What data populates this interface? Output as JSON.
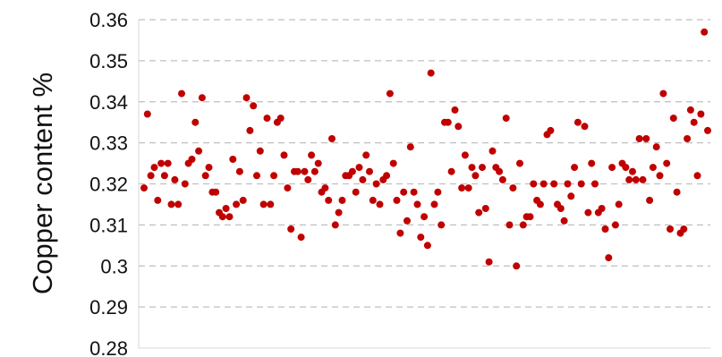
{
  "chart_data": {
    "type": "scatter",
    "title": "",
    "xlabel": "",
    "ylabel": "Copper content %",
    "ylim": [
      0.28,
      0.36
    ],
    "yticks": [
      0.28,
      0.29,
      0.3,
      0.31,
      0.32,
      0.33,
      0.34,
      0.35,
      0.36
    ],
    "ytick_labels": [
      "0.28",
      "0.29",
      "0.3",
      "0.31",
      "0.32",
      "0.33",
      "0.34",
      "0.35",
      "0.36"
    ],
    "grid": "horizontal-dashed",
    "legend": "none",
    "marker_color": "#c00000",
    "gridline_color": "#bfbfbf",
    "y": [
      0.319,
      0.337,
      0.322,
      0.324,
      0.316,
      0.325,
      0.322,
      0.325,
      0.315,
      0.321,
      0.315,
      0.342,
      0.32,
      0.325,
      0.326,
      0.335,
      0.328,
      0.341,
      0.322,
      0.324,
      0.318,
      0.318,
      0.313,
      0.312,
      0.314,
      0.312,
      0.326,
      0.315,
      0.323,
      0.316,
      0.341,
      0.333,
      0.339,
      0.322,
      0.328,
      0.315,
      0.336,
      0.315,
      0.322,
      0.335,
      0.336,
      0.327,
      0.319,
      0.309,
      0.323,
      0.323,
      0.307,
      0.323,
      0.321,
      0.327,
      0.323,
      0.325,
      0.318,
      0.319,
      0.316,
      0.331,
      0.31,
      0.313,
      0.316,
      0.322,
      0.322,
      0.323,
      0.318,
      0.324,
      0.321,
      0.327,
      0.323,
      0.316,
      0.32,
      0.315,
      0.321,
      0.322,
      0.342,
      0.325,
      0.316,
      0.308,
      0.318,
      0.311,
      0.329,
      0.318,
      0.315,
      0.307,
      0.312,
      0.305,
      0.347,
      0.315,
      0.318,
      0.31,
      0.335,
      0.335,
      0.323,
      0.338,
      0.334,
      0.319,
      0.327,
      0.319,
      0.324,
      0.322,
      0.313,
      0.324,
      0.314,
      0.301,
      0.328,
      0.324,
      0.323,
      0.321,
      0.336,
      0.31,
      0.319,
      0.3,
      0.325,
      0.31,
      0.312,
      0.312,
      0.32,
      0.316,
      0.315,
      0.32,
      0.332,
      0.333,
      0.32,
      0.315,
      0.314,
      0.311,
      0.32,
      0.317,
      0.324,
      0.335,
      0.32,
      0.334,
      0.313,
      0.325,
      0.32,
      0.313,
      0.314,
      0.309,
      0.302,
      0.324,
      0.31,
      0.315,
      0.325,
      0.324,
      0.321,
      0.323,
      0.321,
      0.331,
      0.321,
      0.331,
      0.316,
      0.324,
      0.329,
      0.322,
      0.342,
      0.325,
      0.309,
      0.336,
      0.318,
      0.308,
      0.309,
      0.331,
      0.338,
      0.335,
      0.322,
      0.337,
      0.357,
      0.333
    ]
  }
}
